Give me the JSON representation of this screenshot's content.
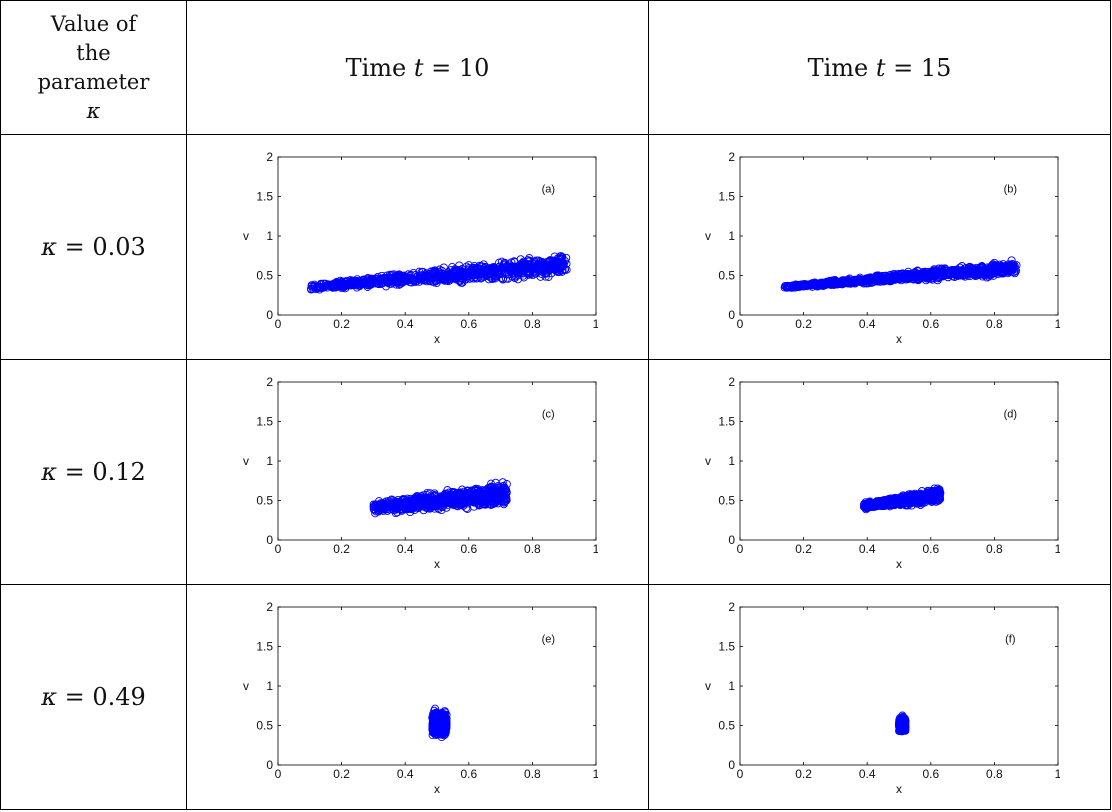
{
  "header": {
    "param_label": [
      "Value of",
      "the",
      "parameter"
    ],
    "param_symbol": "κ",
    "col_prefix": "Time ",
    "col_var": "t",
    "columns": [
      " = 10",
      " = 15"
    ]
  },
  "rows": [
    {
      "var": "κ",
      "value": " = 0.03"
    },
    {
      "var": "κ",
      "value": " = 0.12"
    },
    {
      "var": "κ",
      "value": " = 0.49"
    }
  ],
  "colors": {
    "points": "#0000ff",
    "axis": "#000000"
  },
  "chart_data": [
    {
      "type": "scatter",
      "panel": "(a)",
      "xlabel": "x",
      "ylabel": "v",
      "xlim": [
        0,
        1
      ],
      "ylim": [
        0,
        2
      ],
      "xticks": [
        "0",
        "0.2",
        "0.4",
        "0.6",
        "0.8",
        "1"
      ],
      "yticks": [
        "0",
        "0.5",
        "1",
        "1.5",
        "2"
      ],
      "cloud": {
        "x_range": [
          0.1,
          0.91
        ],
        "v_lower": [
          0.3,
          0.45
        ],
        "v_upper": [
          0.4,
          0.82
        ],
        "count": 900
      }
    },
    {
      "type": "scatter",
      "panel": "(b)",
      "xlabel": "x",
      "ylabel": "v",
      "xlim": [
        0,
        1
      ],
      "ylim": [
        0,
        2
      ],
      "xticks": [
        "0",
        "0.2",
        "0.4",
        "0.6",
        "0.8",
        "1"
      ],
      "yticks": [
        "0",
        "0.5",
        "1",
        "1.5",
        "2"
      ],
      "cloud": {
        "x_range": [
          0.14,
          0.87
        ],
        "v_lower": [
          0.33,
          0.48
        ],
        "v_upper": [
          0.38,
          0.72
        ],
        "count": 900
      }
    },
    {
      "type": "scatter",
      "panel": "(c)",
      "xlabel": "x",
      "ylabel": "v",
      "xlim": [
        0,
        1
      ],
      "ylim": [
        0,
        2
      ],
      "xticks": [
        "0",
        "0.2",
        "0.4",
        "0.6",
        "0.8",
        "1"
      ],
      "yticks": [
        "0",
        "0.5",
        "1",
        "1.5",
        "2"
      ],
      "cloud": {
        "x_range": [
          0.3,
          0.72
        ],
        "v_lower": [
          0.3,
          0.4
        ],
        "v_upper": [
          0.5,
          0.78
        ],
        "count": 800
      }
    },
    {
      "type": "scatter",
      "panel": "(d)",
      "xlabel": "x",
      "ylabel": "v",
      "xlim": [
        0,
        1
      ],
      "ylim": [
        0,
        2
      ],
      "xticks": [
        "0",
        "0.2",
        "0.4",
        "0.6",
        "0.8",
        "1"
      ],
      "yticks": [
        "0",
        "0.5",
        "1",
        "1.5",
        "2"
      ],
      "cloud": {
        "x_range": [
          0.39,
          0.63
        ],
        "v_lower": [
          0.38,
          0.46
        ],
        "v_upper": [
          0.48,
          0.68
        ],
        "count": 700
      }
    },
    {
      "type": "scatter",
      "panel": "(e)",
      "xlabel": "x",
      "ylabel": "v",
      "xlim": [
        0,
        1
      ],
      "ylim": [
        0,
        2
      ],
      "xticks": [
        "0",
        "0.2",
        "0.4",
        "0.6",
        "0.8",
        "1"
      ],
      "yticks": [
        "0",
        "0.5",
        "1",
        "1.5",
        "2"
      ],
      "cloud": {
        "x_range": [
          0.485,
          0.53
        ],
        "v_lower": [
          0.32,
          0.32
        ],
        "v_upper": [
          0.72,
          0.72
        ],
        "count": 500
      }
    },
    {
      "type": "scatter",
      "panel": "(f)",
      "xlabel": "x",
      "ylabel": "v",
      "xlim": [
        0,
        1
      ],
      "ylim": [
        0,
        2
      ],
      "xticks": [
        "0",
        "0.2",
        "0.4",
        "0.6",
        "0.8",
        "1"
      ],
      "yticks": [
        "0",
        "0.5",
        "1",
        "1.5",
        "2"
      ],
      "cloud": {
        "x_range": [
          0.5,
          0.52
        ],
        "v_lower": [
          0.4,
          0.4
        ],
        "v_upper": [
          0.63,
          0.63
        ],
        "count": 350
      }
    }
  ]
}
